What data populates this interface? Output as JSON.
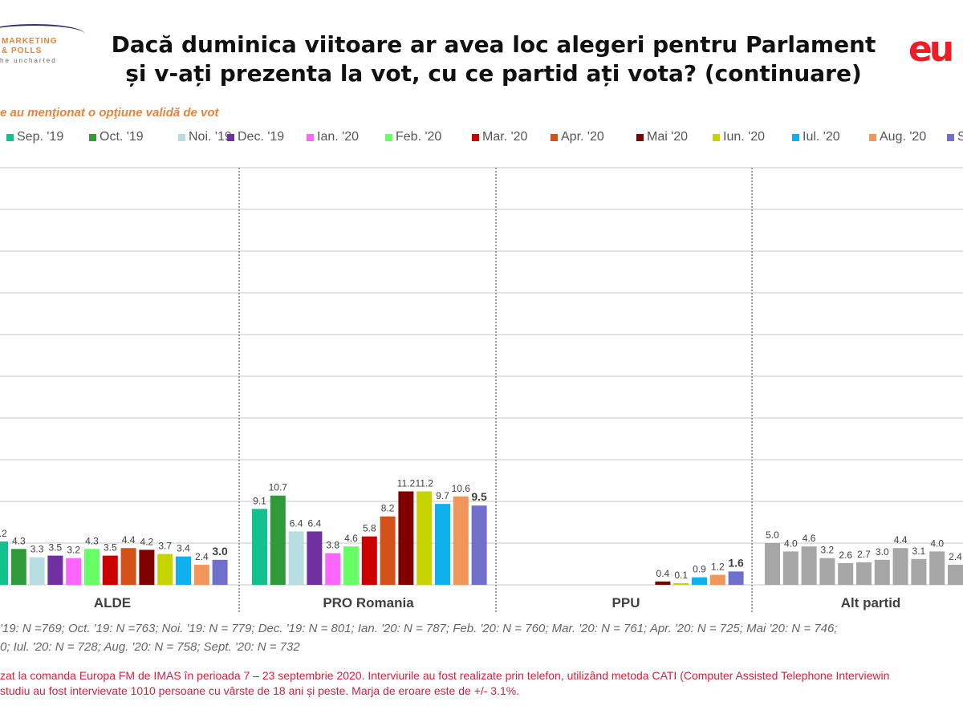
{
  "header": {
    "logo_left_line1": "MARKETING",
    "logo_left_line2": "& POLLS",
    "logo_left_line3": "he uncharted",
    "title_line1": "Dacă duminica viitoare ar avea loc alegeri pentru Parlament",
    "title_line2": "și v-ați prezenta la vot, cu ce partid ați vota? (continuare)",
    "logo_right": "eu"
  },
  "subtitle": "e au menţionat o opţiune validă de vot",
  "notes": {
    "sample_line1": "'19: N =769; Oct. '19: N =763; Noi. '19: N = 779; Dec. '19: N = 801; Ian. '20: N = 787; Feb. '20: N = 760; Mar. '20: N = 761; Apr. '20: N = 725; Mai '20: N = 746;",
    "sample_line2": "0; Iul. '20: N = 728; Aug. '20: N = 758; Sept. '20: N = 732",
    "method_line1": "zat la comanda Europa FM de IMAS în perioada  7 – 23 septembrie 2020. Interviurile au fost realizate prin telefon, utilizând metoda CATI (Computer Assisted Telephone Interviewin",
    "method_line2": " studiu au fost intervievate 1010 persoane cu vârste de 18 ani și peste. Marja de eroare este de +/- 3.1%."
  },
  "chart_data": {
    "type": "bar",
    "title": "Dacă duminica viitoare ar avea loc alegeri pentru Parlament și v-ați prezenta la vot, cu ce partid ați vota? (continuare)",
    "xlabel": "",
    "ylabel": "",
    "ylim": [
      0,
      50
    ],
    "grid": true,
    "legend_position": "top",
    "categories": [
      "ALDE",
      "PRO Romania",
      "PPU",
      "Alt partid"
    ],
    "series": [
      {
        "name": "Sep. '19",
        "color": "#12c18e",
        "values": [
          5.2,
          9.1,
          null,
          5.0
        ]
      },
      {
        "name": "Oct. '19",
        "color": "#2e9a3a",
        "values": [
          4.3,
          10.7,
          null,
          4.0
        ]
      },
      {
        "name": "Noi. '19",
        "color": "#b7dde0",
        "values": [
          3.3,
          6.4,
          null,
          4.6
        ]
      },
      {
        "name": "Dec. '19",
        "color": "#7030a0",
        "values": [
          3.5,
          6.4,
          null,
          3.2
        ]
      },
      {
        "name": "Ian. '20",
        "color": "#ff66ff",
        "values": [
          3.2,
          3.8,
          null,
          2.6
        ]
      },
      {
        "name": "Feb. '20",
        "color": "#66ff66",
        "values": [
          4.3,
          4.6,
          null,
          2.7
        ]
      },
      {
        "name": "Mar. '20",
        "color": "#cc0000",
        "values": [
          3.5,
          5.8,
          null,
          3.0
        ]
      },
      {
        "name": "Apr. '20",
        "color": "#d4521a",
        "values": [
          4.4,
          8.2,
          null,
          4.4
        ]
      },
      {
        "name": "Mai '20",
        "color": "#800000",
        "values": [
          4.2,
          11.2,
          0.4,
          3.1
        ]
      },
      {
        "name": "Iun. '20",
        "color": "#c8d400",
        "values": [
          3.7,
          11.2,
          0.1,
          4.0
        ]
      },
      {
        "name": "Iul. '20",
        "color": "#0fb0ee",
        "values": [
          3.4,
          9.7,
          0.9,
          2.4
        ]
      },
      {
        "name": "Aug. '20",
        "color": "#f0965a",
        "values": [
          2.4,
          10.6,
          1.2,
          null
        ]
      },
      {
        "name": "Sept. '20",
        "color": "#7070cc",
        "values": [
          3.0,
          9.5,
          1.6,
          null
        ]
      }
    ],
    "legend_labels": [
      "Sep. '19",
      "Oct. '19",
      "Noi. '19",
      "Dec. '19",
      "Ian. '20",
      "Feb. '20",
      "Mar. '20",
      "Apr. '20",
      "Mai '20",
      "Iun. '20",
      "Iul. '20",
      "Aug. '20",
      "S"
    ],
    "highlight_last_series_labels": true,
    "alt_partid_color": "#a6a6a6"
  }
}
